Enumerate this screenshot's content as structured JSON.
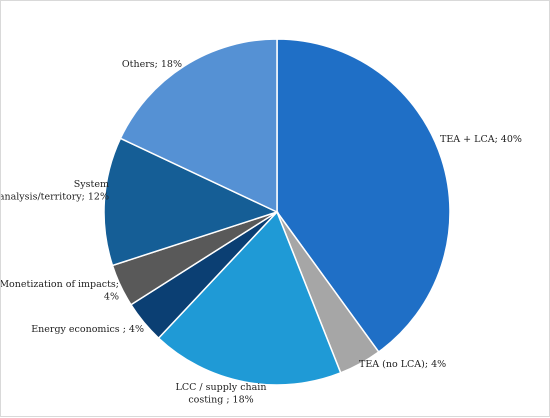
{
  "chart_data": {
    "type": "pie",
    "title": "",
    "categories": [
      "TEA + LCA",
      "TEA (no LCA)",
      "LCC / supply chain costing",
      "Energy economics",
      "Monetization of impacts",
      "System analysis/territory",
      "Others"
    ],
    "values": [
      40,
      4,
      18,
      4,
      4,
      12,
      18
    ],
    "unit": "%",
    "start_angle_deg": 0,
    "direction": "clockwise",
    "legend": "none",
    "data_labels": [
      [
        "TEA + LCA; 40%"
      ],
      [
        "TEA (no LCA); 4%"
      ],
      [
        "LCC / supply chain",
        "costing ; 18%"
      ],
      [
        "Energy economics ; 4%"
      ],
      [
        "Monetization of impacts;",
        "4%"
      ],
      [
        "System",
        "analysis/territory; 12%"
      ],
      [
        "Others; 18%"
      ]
    ],
    "colors": [
      "#1f6fc6",
      "#a6a6a6",
      "#1f9ad6",
      "#0b3f73",
      "#595959",
      "#155e96",
      "#5591d4"
    ]
  }
}
